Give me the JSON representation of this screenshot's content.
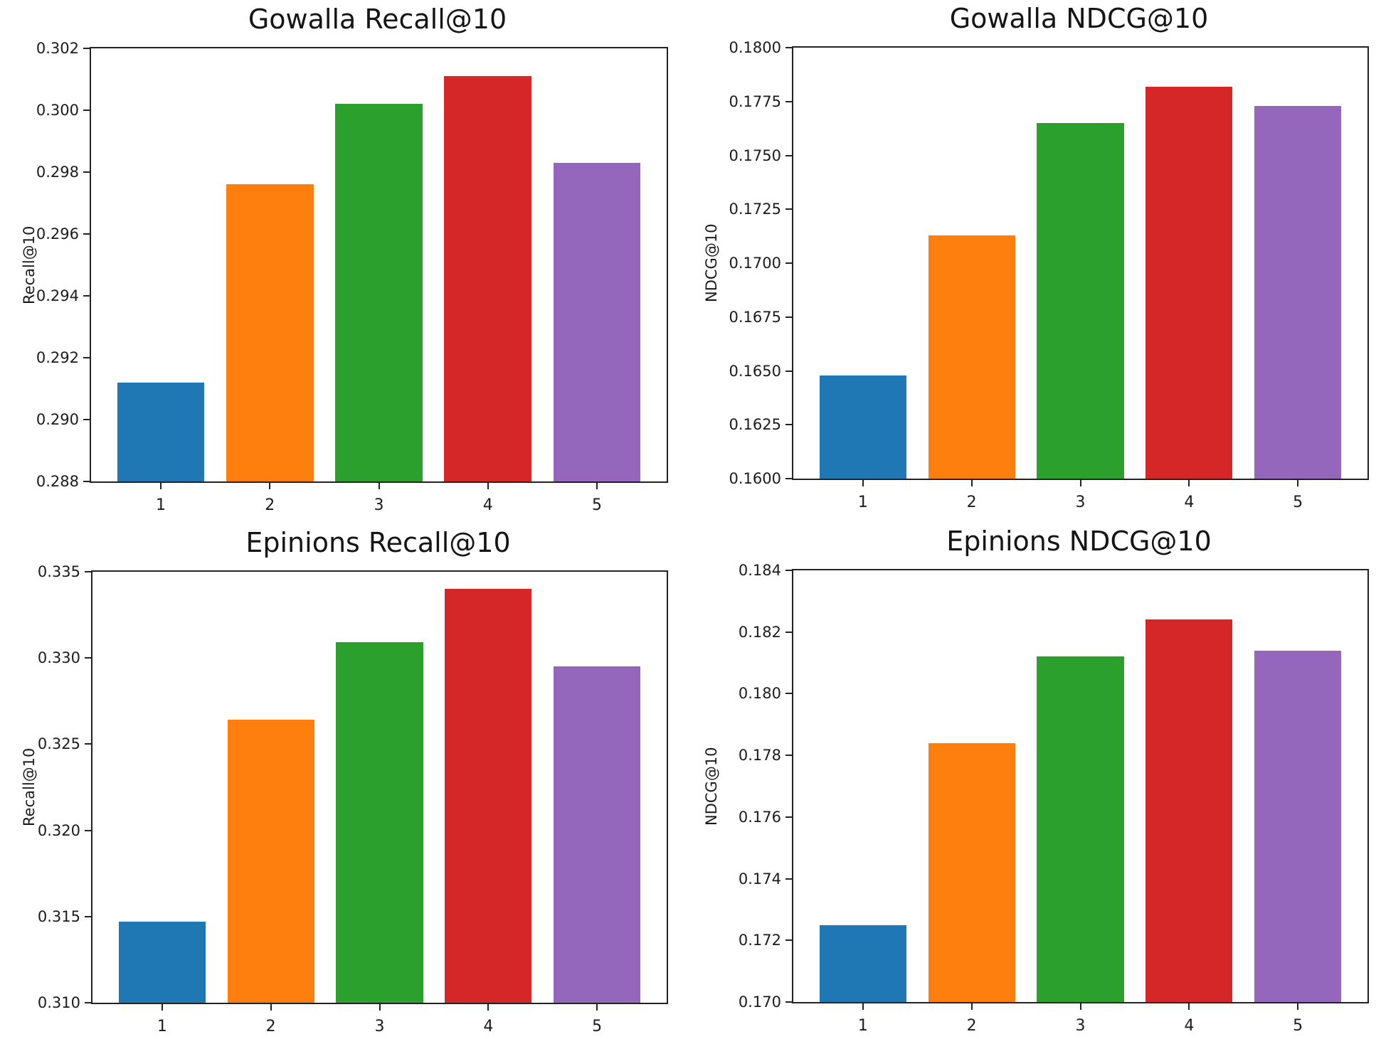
{
  "figure": {
    "background_color": "#ffffff",
    "spine_color": "#222222",
    "text_color": "#1b1b1b"
  },
  "chart_data": [
    {
      "type": "bar",
      "title": "Gowalla Recall@10",
      "xlabel": "",
      "ylabel": "Recall@10",
      "categories": [
        "1",
        "2",
        "3",
        "4",
        "5"
      ],
      "values": [
        0.2912,
        0.2976,
        0.3002,
        0.3011,
        0.2983
      ],
      "ylim": [
        0.288,
        0.302
      ],
      "yticks": [
        "0.288",
        "0.290",
        "0.292",
        "0.294",
        "0.296",
        "0.298",
        "0.300",
        "0.302"
      ],
      "bar_colors": [
        "#1f77b4",
        "#ff7f0e",
        "#2ca02c",
        "#d62728",
        "#9467bd"
      ],
      "grid": false,
      "legend": false
    },
    {
      "type": "bar",
      "title": "Gowalla NDCG@10",
      "xlabel": "",
      "ylabel": "NDCG@10",
      "categories": [
        "1",
        "2",
        "3",
        "4",
        "5"
      ],
      "values": [
        0.1648,
        0.1713,
        0.1765,
        0.1782,
        0.1773
      ],
      "ylim": [
        0.16,
        0.18
      ],
      "yticks": [
        "0.1600",
        "0.1625",
        "0.1650",
        "0.1675",
        "0.1700",
        "0.1725",
        "0.1750",
        "0.1775",
        "0.1800"
      ],
      "bar_colors": [
        "#1f77b4",
        "#ff7f0e",
        "#2ca02c",
        "#d62728",
        "#9467bd"
      ],
      "grid": false,
      "legend": false
    },
    {
      "type": "bar",
      "title": "Epinions Recall@10",
      "xlabel": "",
      "ylabel": "Recall@10",
      "categories": [
        "1",
        "2",
        "3",
        "4",
        "5"
      ],
      "values": [
        0.3147,
        0.3264,
        0.3309,
        0.334,
        0.3295
      ],
      "ylim": [
        0.31,
        0.335
      ],
      "yticks": [
        "0.310",
        "0.315",
        "0.320",
        "0.325",
        "0.330",
        "0.335"
      ],
      "bar_colors": [
        "#1f77b4",
        "#ff7f0e",
        "#2ca02c",
        "#d62728",
        "#9467bd"
      ],
      "grid": false,
      "legend": false
    },
    {
      "type": "bar",
      "title": "Epinions NDCG@10",
      "xlabel": "",
      "ylabel": "NDCG@10",
      "categories": [
        "1",
        "2",
        "3",
        "4",
        "5"
      ],
      "values": [
        0.1725,
        0.1784,
        0.1812,
        0.1824,
        0.1814
      ],
      "ylim": [
        0.17,
        0.184
      ],
      "yticks": [
        "0.170",
        "0.172",
        "0.174",
        "0.176",
        "0.178",
        "0.180",
        "0.182",
        "0.184"
      ],
      "bar_colors": [
        "#1f77b4",
        "#ff7f0e",
        "#2ca02c",
        "#d62728",
        "#9467bd"
      ],
      "grid": false,
      "legend": false
    }
  ]
}
